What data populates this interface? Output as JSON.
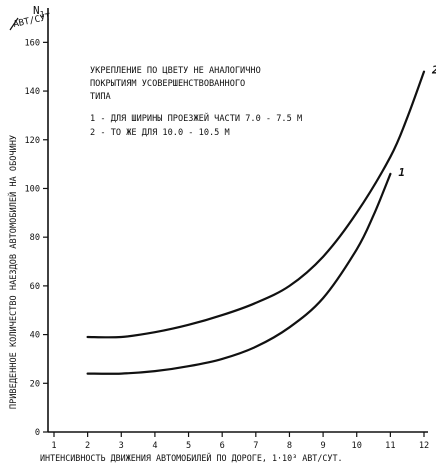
{
  "chart_data": {
    "type": "line",
    "title": "",
    "annotation": {
      "title_lines": [
        "УКРЕПЛЕНИЕ ПО ЦВЕТУ НЕ АНАЛОГИЧНО",
        "ПОКРЫТИЯМ УСОВЕРШЕНСТВОВАННОГО",
        "ТИПА"
      ],
      "legend_lines": [
        "1 - ДЛЯ ШИРИНЫ ПРОЕЗЖЕЙ ЧАСТИ 7.0 - 7.5 М",
        "2 - ТО ЖЕ ДЛЯ 10.0 - 10.5 М"
      ]
    },
    "xlabel": "ИНТЕНСИВНОСТЬ ДВИЖЕНИЯ АВТОМОБИЛЕЙ ПО ДОРОГЕ, 1·10³ АВТ/СУТ.",
    "ylabel": "ПРИВЕДЕННОЕ КОЛИЧЕСТВО НАЕЗДОВ АВТОМОБИЛЕЙ НА ОБОЧИНУ",
    "yunit": "АВТ/СУТ",
    "ysymbol": "N",
    "ysymbol_sub": "1",
    "xlim": [
      1,
      12
    ],
    "ylim": [
      0,
      170
    ],
    "xticks": [
      "1",
      "2",
      "3",
      "4",
      "5",
      "6",
      "7",
      "8",
      "9",
      "10",
      "11",
      "12"
    ],
    "yticks": [
      "0",
      "20",
      "40",
      "60",
      "80",
      "100",
      "120",
      "140",
      "160"
    ],
    "grid": false,
    "series": [
      {
        "name": "1",
        "x": [
          2,
          3,
          4,
          5,
          6,
          7,
          8,
          9,
          10,
          10.5,
          11
        ],
        "y": [
          24,
          24,
          25,
          27,
          30,
          35,
          43,
          55,
          75,
          89,
          106
        ]
      },
      {
        "name": "2",
        "x": [
          2,
          3,
          4,
          5,
          6,
          7,
          8,
          9,
          10,
          11,
          11.5,
          12
        ],
        "y": [
          39,
          39,
          41,
          44,
          48,
          53,
          60,
          72,
          90,
          113,
          129,
          148
        ]
      }
    ]
  }
}
